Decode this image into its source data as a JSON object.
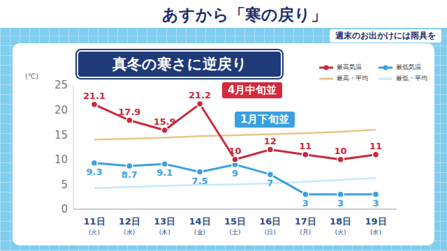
{
  "header": {
    "title": "あすから「寒の戻り」",
    "subtitle": "週末のお出かけには雨具を"
  },
  "chart_data": {
    "type": "line",
    "title": "真冬の寒さに逆戻り",
    "y_label": "(℃)",
    "categories": [
      "11日(火)",
      "12日(水)",
      "13日(木)",
      "14日(金)",
      "15日(土)",
      "16日(日)",
      "17日(月)",
      "18日(火)",
      "19日(水)"
    ],
    "series": [
      {
        "name": "最高気温",
        "color": "#c8283c",
        "marker": "circle",
        "data_labels": true,
        "values": [
          21.1,
          17.9,
          15.9,
          21.2,
          10,
          12,
          11,
          10,
          11
        ]
      },
      {
        "name": "最低気温",
        "color": "#3aa0e0",
        "marker": "circle",
        "data_labels": true,
        "values": [
          9.3,
          8.7,
          9.1,
          7.5,
          9,
          7,
          3,
          3,
          3
        ]
      },
      {
        "name": "最高・平均",
        "color": "#e6c685",
        "marker": "none",
        "values": [
          14,
          14.2,
          14.4,
          14.7,
          14.9,
          15.1,
          15.3,
          15.6,
          16
        ]
      },
      {
        "name": "最低・平均",
        "color": "#c4e9f7",
        "marker": "none",
        "values": [
          4.2,
          4.5,
          4.7,
          4.9,
          5,
          5.2,
          5.5,
          5.9,
          6.3
        ]
      }
    ],
    "ylim": [
      0,
      25
    ],
    "yticks": [
      0,
      5,
      10,
      15,
      20,
      25
    ],
    "grid": false,
    "legend": "upper right",
    "annotations": [
      {
        "text": "4月中旬並"
      },
      {
        "text": "1月下旬並"
      }
    ]
  }
}
